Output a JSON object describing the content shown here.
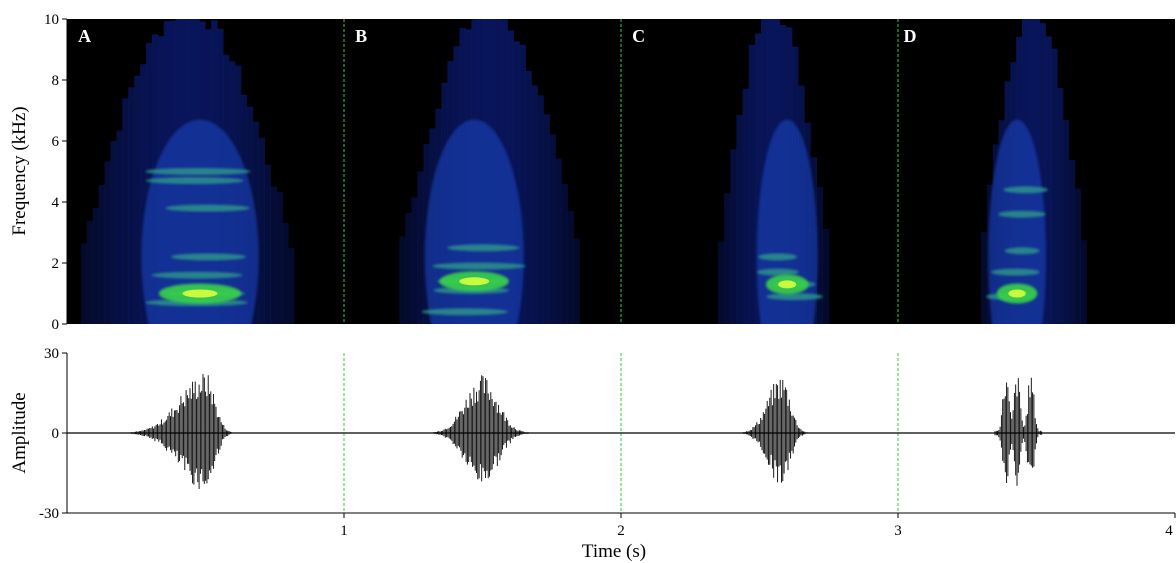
{
  "chart_data": [
    {
      "type": "heatmap",
      "panel": "spectrogram",
      "ylabel": "Frequency (kHz)",
      "ylim": [
        0,
        10
      ],
      "yticks": [
        0,
        2,
        4,
        6,
        8,
        10
      ],
      "xlim": [
        0,
        4
      ],
      "colormap": [
        "#000000",
        "#0a1a6e",
        "#1f47c8",
        "#2f9a8a",
        "#38d24a",
        "#d9ff3c"
      ],
      "separators": [
        1,
        2,
        3
      ],
      "separator_color": "#33cc33",
      "calls": [
        {
          "label": "A",
          "start": 0.05,
          "end": 0.82,
          "peak_freq": 1.0,
          "peak_time": 0.48,
          "bands": [
            0.7,
            1.0,
            1.6,
            2.2,
            3.8,
            4.7,
            5.0
          ]
        },
        {
          "label": "B",
          "start": 1.2,
          "end": 1.85,
          "peak_freq": 1.4,
          "peak_time": 1.47,
          "bands": [
            0.4,
            1.1,
            1.4,
            1.9,
            2.5
          ]
        },
        {
          "label": "C",
          "start": 2.35,
          "end": 2.75,
          "peak_freq": 1.3,
          "peak_time": 2.6,
          "bands": [
            0.9,
            1.3,
            1.7,
            2.2
          ]
        },
        {
          "label": "D",
          "start": 3.3,
          "end": 3.68,
          "peak_freq": 1.0,
          "peak_time": 3.43,
          "bands": [
            0.9,
            1.7,
            2.4,
            3.6,
            4.4
          ]
        }
      ]
    },
    {
      "type": "line",
      "panel": "waveform",
      "xlabel": "Time (s)",
      "ylabel": "Amplitude",
      "xlim": [
        0,
        4
      ],
      "xticks": [
        1,
        2,
        3,
        4
      ],
      "ylim": [
        -30,
        30
      ],
      "yticks": [
        -30,
        0,
        30
      ],
      "separators": [
        1,
        2,
        3
      ],
      "bursts": [
        {
          "call": "A",
          "start": 0.2,
          "end": 0.65,
          "peak_time": 0.5,
          "max": 23,
          "min": -22
        },
        {
          "call": "B",
          "start": 1.3,
          "end": 1.75,
          "peak_time": 1.5,
          "max": 22,
          "min": -20
        },
        {
          "call": "C",
          "start": 2.42,
          "end": 2.72,
          "peak_time": 2.58,
          "max": 22,
          "min": -20
        },
        {
          "call": "D",
          "start": 3.35,
          "end": 3.52,
          "peak_time": 3.45,
          "max": 23,
          "min": -22,
          "pulses": [
            3.39,
            3.43,
            3.48
          ]
        }
      ]
    }
  ]
}
